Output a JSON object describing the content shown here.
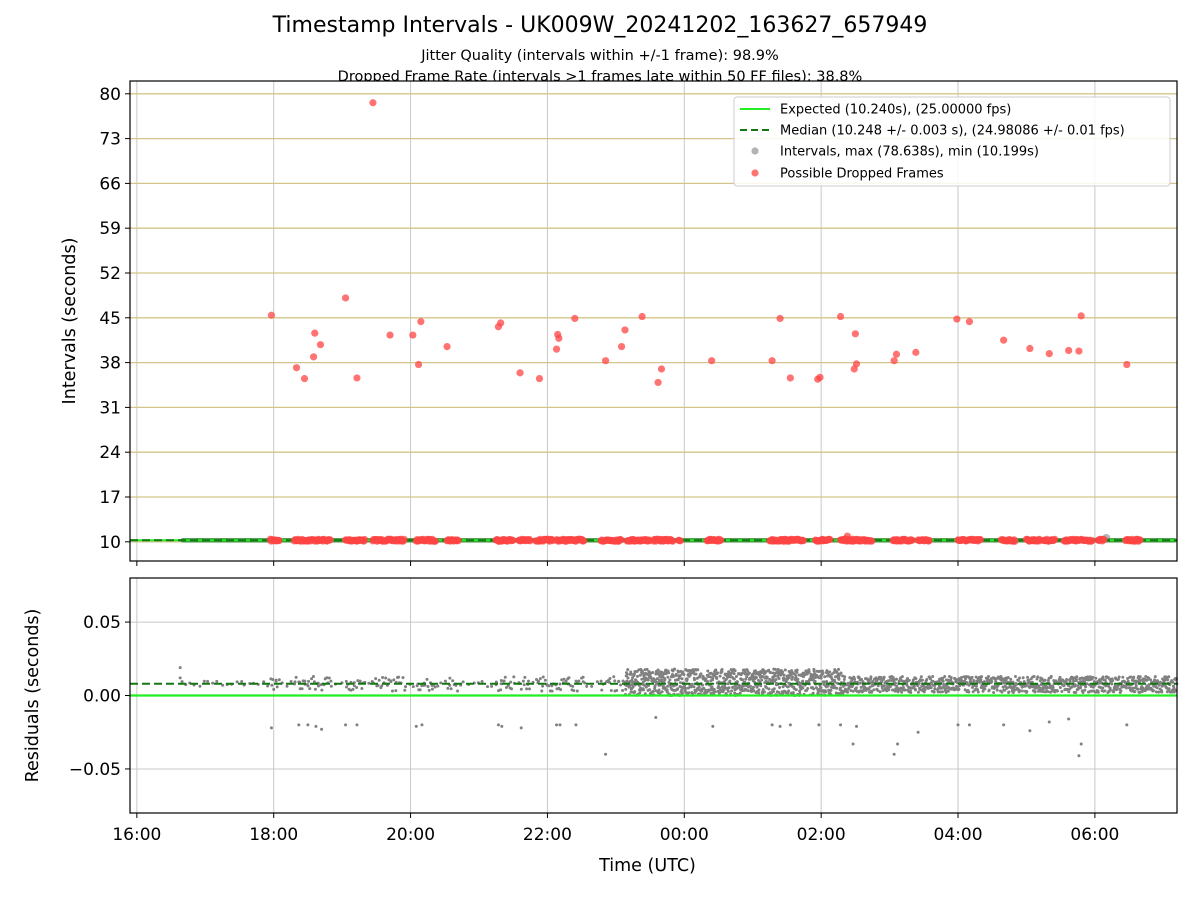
{
  "chart_data": [
    {
      "type": "scatter",
      "title": "Timestamp Intervals - UK009W_20241202_163627_657949",
      "subtitle_lines": [
        "Jitter Quality (intervals within +/-1 frame): 98.9%",
        "Dropped Frame Rate (intervals >1 frames late within 50 FF files): 38.8%"
      ],
      "ylabel": "Intervals (seconds)",
      "ylim": [
        7,
        82
      ],
      "yticks": [
        "10",
        "17",
        "24",
        "31",
        "38",
        "45",
        "52",
        "59",
        "66",
        "73",
        "80"
      ],
      "xlim": [
        "15:54",
        "07:12"
      ],
      "grid": true,
      "legend_position": "top-right",
      "legend": [
        "Expected (10.240s), (25.00000 fps)",
        "Median (10.248 +/- 0.003 s), (24.98086 +/- 0.01 fps)",
        "Intervals, max (78.638s), min (10.199s)",
        "Possible Dropped Frames"
      ],
      "expected_interval": 10.24,
      "median_interval": 10.248,
      "normal_interval_range": [
        10.2,
        10.26
      ],
      "normal_interval_time_span": [
        "16:38",
        "07:12"
      ],
      "normal_interval_color": "#3f8f3f",
      "expected_color": "#22ee22",
      "median_color": "#117711",
      "interval_color": "#808080",
      "dropped_color": "#ff4444",
      "dropped_frames": [
        {
          "time": "17:58",
          "interval": 45.4
        },
        {
          "time": "18:20",
          "interval": 37.2
        },
        {
          "time": "18:27",
          "interval": 35.5
        },
        {
          "time": "18:35",
          "interval": 38.9
        },
        {
          "time": "18:36",
          "interval": 42.6
        },
        {
          "time": "18:41",
          "interval": 40.8
        },
        {
          "time": "19:03",
          "interval": 48.1
        },
        {
          "time": "19:13",
          "interval": 35.6
        },
        {
          "time": "19:27",
          "interval": 78.6
        },
        {
          "time": "19:42",
          "interval": 42.3
        },
        {
          "time": "20:02",
          "interval": 42.3
        },
        {
          "time": "20:07",
          "interval": 37.7
        },
        {
          "time": "20:09",
          "interval": 44.4
        },
        {
          "time": "20:32",
          "interval": 40.5
        },
        {
          "time": "21:17",
          "interval": 43.6
        },
        {
          "time": "21:19",
          "interval": 44.2
        },
        {
          "time": "21:36",
          "interval": 36.4
        },
        {
          "time": "21:53",
          "interval": 35.5
        },
        {
          "time": "22:08",
          "interval": 40.1
        },
        {
          "time": "22:09",
          "interval": 42.4
        },
        {
          "time": "22:10",
          "interval": 41.8
        },
        {
          "time": "22:24",
          "interval": 44.9
        },
        {
          "time": "22:51",
          "interval": 38.3
        },
        {
          "time": "23:05",
          "interval": 40.5
        },
        {
          "time": "23:08",
          "interval": 43.1
        },
        {
          "time": "23:23",
          "interval": 45.2
        },
        {
          "time": "23:37",
          "interval": 34.9
        },
        {
          "time": "23:40",
          "interval": 37.0
        },
        {
          "time": "00:24",
          "interval": 38.3
        },
        {
          "time": "01:17",
          "interval": 38.3
        },
        {
          "time": "01:24",
          "interval": 44.9
        },
        {
          "time": "01:33",
          "interval": 35.6
        },
        {
          "time": "01:57",
          "interval": 35.4
        },
        {
          "time": "01:59",
          "interval": 35.7
        },
        {
          "time": "02:17",
          "interval": 45.2
        },
        {
          "time": "02:29",
          "interval": 37.0
        },
        {
          "time": "02:30",
          "interval": 42.5
        },
        {
          "time": "02:31",
          "interval": 37.8
        },
        {
          "time": "03:04",
          "interval": 38.3
        },
        {
          "time": "03:06",
          "interval": 39.3
        },
        {
          "time": "03:23",
          "interval": 39.6
        },
        {
          "time": "03:59",
          "interval": 44.8
        },
        {
          "time": "04:10",
          "interval": 44.4
        },
        {
          "time": "04:40",
          "interval": 41.5
        },
        {
          "time": "05:03",
          "interval": 40.2
        },
        {
          "time": "05:20",
          "interval": 39.4
        },
        {
          "time": "05:37",
          "interval": 39.9
        },
        {
          "time": "05:46",
          "interval": 39.8
        },
        {
          "time": "05:48",
          "interval": 45.3
        },
        {
          "time": "06:28",
          "interval": 37.7
        }
      ],
      "dropped_near_baseline_segments": [
        [
          "17:57",
          "18:05"
        ],
        [
          "18:18",
          "18:50"
        ],
        [
          "19:03",
          "19:20"
        ],
        [
          "19:27",
          "19:55"
        ],
        [
          "20:05",
          "20:22"
        ],
        [
          "20:32",
          "20:42"
        ],
        [
          "21:15",
          "21:30"
        ],
        [
          "21:35",
          "21:45"
        ],
        [
          "21:50",
          "22:05"
        ],
        [
          "22:08",
          "22:32"
        ],
        [
          "22:47",
          "23:05"
        ],
        [
          "23:10",
          "23:30"
        ],
        [
          "23:33",
          "23:50"
        ],
        [
          "23:55",
          "23:57"
        ],
        [
          "00:20",
          "00:32"
        ],
        [
          "01:15",
          "01:45"
        ],
        [
          "01:55",
          "02:08"
        ],
        [
          "02:17",
          "02:45"
        ],
        [
          "03:03",
          "03:20"
        ],
        [
          "03:25",
          "03:35"
        ],
        [
          "04:00",
          "04:20"
        ],
        [
          "04:38",
          "04:50"
        ],
        [
          "05:00",
          "05:12"
        ],
        [
          "05:15",
          "05:25"
        ],
        [
          "05:33",
          "05:58"
        ],
        [
          "06:03",
          "06:08"
        ],
        [
          "06:27",
          "06:40"
        ]
      ]
    },
    {
      "type": "scatter",
      "xlabel": "Time (UTC)",
      "ylabel": "Residuals (seconds)",
      "ylim": [
        -0.08,
        0.08
      ],
      "yticks": [
        "−0.05",
        "0.00",
        "0.05"
      ],
      "xticks": [
        "16:00",
        "18:00",
        "20:00",
        "22:00",
        "00:00",
        "02:00",
        "04:00",
        "06:00"
      ],
      "xlim": [
        "15:54",
        "07:12"
      ],
      "grid": true,
      "expected_residual": 0.0,
      "median_residual": 0.008,
      "point_color": "#808080",
      "low_density_span": [
        "16:38",
        "23:08"
      ],
      "high_density_span": [
        "23:08",
        "02:20"
      ],
      "mid_density_span": [
        "02:20",
        "07:12"
      ],
      "negative_outliers": [
        {
          "time": "17:58",
          "residual": -0.022
        },
        {
          "time": "18:22",
          "residual": -0.02
        },
        {
          "time": "18:30",
          "residual": -0.02
        },
        {
          "time": "18:37",
          "residual": -0.021
        },
        {
          "time": "18:42",
          "residual": -0.023
        },
        {
          "time": "19:03",
          "residual": -0.02
        },
        {
          "time": "19:13",
          "residual": -0.02
        },
        {
          "time": "20:05",
          "residual": -0.021
        },
        {
          "time": "20:10",
          "residual": -0.02
        },
        {
          "time": "21:17",
          "residual": -0.02
        },
        {
          "time": "21:20",
          "residual": -0.021
        },
        {
          "time": "21:37",
          "residual": -0.022
        },
        {
          "time": "22:08",
          "residual": -0.02
        },
        {
          "time": "22:11",
          "residual": -0.02
        },
        {
          "time": "22:25",
          "residual": -0.02
        },
        {
          "time": "22:51",
          "residual": -0.04
        },
        {
          "time": "23:35",
          "residual": -0.015
        },
        {
          "time": "00:25",
          "residual": -0.021
        },
        {
          "time": "01:17",
          "residual": -0.02
        },
        {
          "time": "01:24",
          "residual": -0.021
        },
        {
          "time": "01:33",
          "residual": -0.02
        },
        {
          "time": "01:58",
          "residual": -0.02
        },
        {
          "time": "02:17",
          "residual": -0.02
        },
        {
          "time": "02:28",
          "residual": -0.033
        },
        {
          "time": "02:31",
          "residual": -0.021
        },
        {
          "time": "03:04",
          "residual": -0.04
        },
        {
          "time": "03:07",
          "residual": -0.033
        },
        {
          "time": "03:25",
          "residual": -0.025
        },
        {
          "time": "04:00",
          "residual": -0.02
        },
        {
          "time": "04:10",
          "residual": -0.02
        },
        {
          "time": "04:40",
          "residual": -0.02
        },
        {
          "time": "05:03",
          "residual": -0.024
        },
        {
          "time": "05:20",
          "residual": -0.018
        },
        {
          "time": "05:37",
          "residual": -0.016
        },
        {
          "time": "05:46",
          "residual": -0.041
        },
        {
          "time": "05:48",
          "residual": -0.033
        },
        {
          "time": "06:28",
          "residual": -0.02
        }
      ]
    }
  ]
}
